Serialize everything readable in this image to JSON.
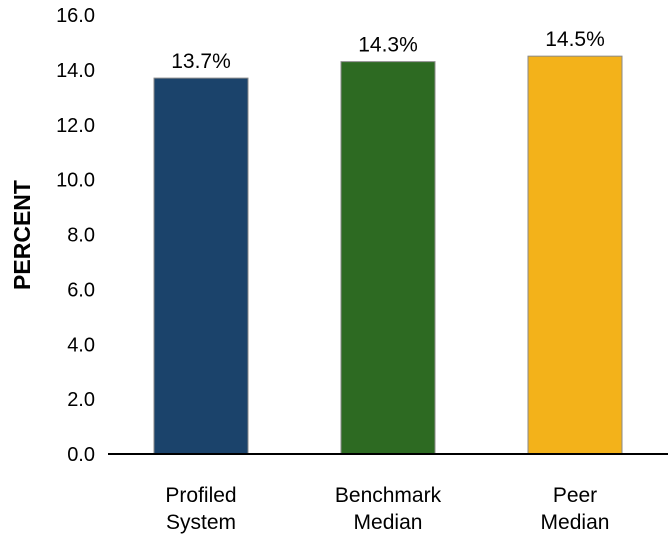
{
  "chart_data": {
    "type": "bar",
    "title": "",
    "xlabel": "",
    "ylabel": "PERCENT",
    "ylim": [
      0,
      16
    ],
    "yticks": [
      "0.0",
      "2.0",
      "4.0",
      "6.0",
      "8.0",
      "10.0",
      "12.0",
      "14.0",
      "16.0"
    ],
    "categories": [
      [
        "Profiled",
        "System"
      ],
      [
        "Benchmark",
        "Median"
      ],
      [
        "Peer",
        "Median"
      ]
    ],
    "values": [
      13.7,
      14.3,
      14.5
    ],
    "value_labels": [
      "13.7%",
      "14.3%",
      "14.5%"
    ],
    "colors": [
      "#1b436b",
      "#2d6a22",
      "#f3b21a"
    ],
    "grid": false,
    "legend": "none"
  }
}
